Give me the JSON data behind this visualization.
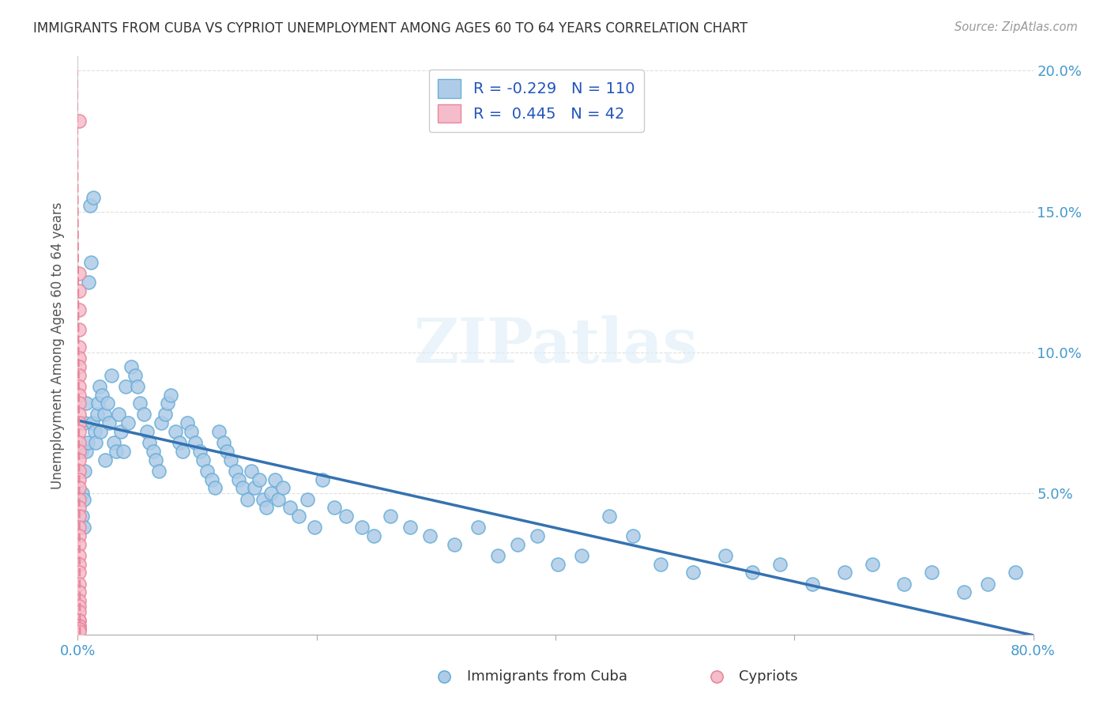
{
  "title": "IMMIGRANTS FROM CUBA VS CYPRIOT UNEMPLOYMENT AMONG AGES 60 TO 64 YEARS CORRELATION CHART",
  "source": "Source: ZipAtlas.com",
  "ylabel": "Unemployment Among Ages 60 to 64 years",
  "xlim": [
    0,
    0.8
  ],
  "ylim": [
    0,
    0.205
  ],
  "cuba_color": "#aecce8",
  "cuba_edge_color": "#6aaed6",
  "cypriot_color": "#f5bccb",
  "cypriot_edge_color": "#e8879a",
  "trendline_cuba_color": "#3572b0",
  "trendline_cypriot_color": "#e8879a",
  "R_cuba": -0.229,
  "N_cuba": 110,
  "R_cypriot": 0.445,
  "N_cypriot": 42,
  "legend_label_cuba": "Immigrants from Cuba",
  "legend_label_cypriot": "Cypriots",
  "watermark": "ZIPatlas",
  "cuba_x": [
    0.003,
    0.004,
    0.004,
    0.005,
    0.005,
    0.006,
    0.006,
    0.007,
    0.007,
    0.008,
    0.009,
    0.01,
    0.011,
    0.012,
    0.013,
    0.014,
    0.015,
    0.016,
    0.017,
    0.018,
    0.019,
    0.02,
    0.022,
    0.023,
    0.025,
    0.026,
    0.028,
    0.03,
    0.032,
    0.034,
    0.036,
    0.038,
    0.04,
    0.042,
    0.045,
    0.048,
    0.05,
    0.052,
    0.055,
    0.058,
    0.06,
    0.063,
    0.065,
    0.068,
    0.07,
    0.073,
    0.075,
    0.078,
    0.082,
    0.085,
    0.088,
    0.092,
    0.095,
    0.098,
    0.102,
    0.105,
    0.108,
    0.112,
    0.115,
    0.118,
    0.122,
    0.125,
    0.128,
    0.132,
    0.135,
    0.138,
    0.142,
    0.145,
    0.148,
    0.152,
    0.155,
    0.158,
    0.162,
    0.165,
    0.168,
    0.172,
    0.178,
    0.185,
    0.192,
    0.198,
    0.205,
    0.215,
    0.225,
    0.238,
    0.248,
    0.262,
    0.278,
    0.295,
    0.315,
    0.335,
    0.352,
    0.368,
    0.385,
    0.402,
    0.422,
    0.445,
    0.465,
    0.488,
    0.515,
    0.542,
    0.565,
    0.588,
    0.615,
    0.642,
    0.665,
    0.692,
    0.715,
    0.742,
    0.762,
    0.785
  ],
  "cuba_y": [
    0.065,
    0.05,
    0.042,
    0.048,
    0.038,
    0.075,
    0.058,
    0.082,
    0.065,
    0.068,
    0.125,
    0.152,
    0.132,
    0.075,
    0.155,
    0.072,
    0.068,
    0.078,
    0.082,
    0.088,
    0.072,
    0.085,
    0.078,
    0.062,
    0.082,
    0.075,
    0.092,
    0.068,
    0.065,
    0.078,
    0.072,
    0.065,
    0.088,
    0.075,
    0.095,
    0.092,
    0.088,
    0.082,
    0.078,
    0.072,
    0.068,
    0.065,
    0.062,
    0.058,
    0.075,
    0.078,
    0.082,
    0.085,
    0.072,
    0.068,
    0.065,
    0.075,
    0.072,
    0.068,
    0.065,
    0.062,
    0.058,
    0.055,
    0.052,
    0.072,
    0.068,
    0.065,
    0.062,
    0.058,
    0.055,
    0.052,
    0.048,
    0.058,
    0.052,
    0.055,
    0.048,
    0.045,
    0.05,
    0.055,
    0.048,
    0.052,
    0.045,
    0.042,
    0.048,
    0.038,
    0.055,
    0.045,
    0.042,
    0.038,
    0.035,
    0.042,
    0.038,
    0.035,
    0.032,
    0.038,
    0.028,
    0.032,
    0.035,
    0.025,
    0.028,
    0.042,
    0.035,
    0.025,
    0.022,
    0.028,
    0.022,
    0.025,
    0.018,
    0.022,
    0.025,
    0.018,
    0.022,
    0.015,
    0.018,
    0.022
  ],
  "cypriot_x": [
    0.001,
    0.001,
    0.001,
    0.001,
    0.001,
    0.001,
    0.001,
    0.001,
    0.001,
    0.001,
    0.001,
    0.001,
    0.001,
    0.001,
    0.001,
    0.001,
    0.001,
    0.001,
    0.001,
    0.001,
    0.001,
    0.001,
    0.001,
    0.001,
    0.001,
    0.001,
    0.001,
    0.001,
    0.001,
    0.001,
    0.001,
    0.001,
    0.001,
    0.001,
    0.001,
    0.001,
    0.001,
    0.001,
    0.001,
    0.001,
    0.001,
    0.001
  ],
  "cypriot_y": [
    0.182,
    0.128,
    0.122,
    0.115,
    0.108,
    0.102,
    0.098,
    0.095,
    0.092,
    0.088,
    0.085,
    0.082,
    0.078,
    0.075,
    0.072,
    0.068,
    0.065,
    0.062,
    0.058,
    0.055,
    0.052,
    0.048,
    0.045,
    0.042,
    0.038,
    0.035,
    0.032,
    0.028,
    0.025,
    0.022,
    0.018,
    0.015,
    0.012,
    0.01,
    0.008,
    0.005,
    0.005,
    0.003,
    0.003,
    0.002,
    0.002,
    0.001
  ],
  "background_color": "#ffffff",
  "grid_color": "#e0e0e0"
}
